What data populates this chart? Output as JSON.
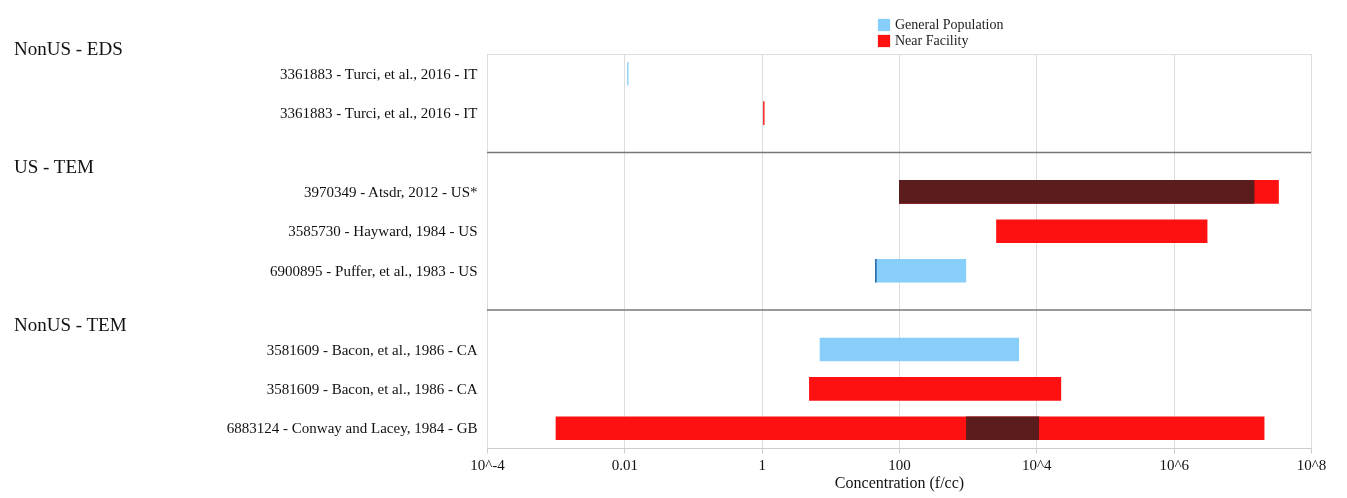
{
  "chart_data": {
    "type": "bar",
    "orientation": "horizontal",
    "log": "x",
    "grid": "x",
    "legend": "top",
    "xlabel": "Concentration (f/cc)",
    "categories": [
      "3361883 - Turci, et al., 2016 - IT",
      "3361883 - Turci, et al., 2016 - IT",
      null,
      "3970349 - Atsdr, 2012 - US*",
      "3585730 - Hayward, 1984 - US",
      "6900895 - Puffer, et al., 1983 - US",
      null,
      "3581609 - Bacon, et al., 1986 - CA",
      "3581609 - Bacon, et al., 1986 - CA",
      "6883124 - Conway and Lacey, 1984 - GB"
    ],
    "annotations": [
      "NonUS - EDS",
      "US - TEM",
      "NonUS - TEM"
    ],
    "xlim": [
      0.0001,
      100000000
    ],
    "xticks": [
      {
        "value": 0.0001,
        "label": "10^-4"
      },
      0.01,
      1,
      100,
      {
        "value": 10000,
        "label": "10^4"
      },
      {
        "value": 1000000,
        "label": "10^6"
      },
      {
        "value": 100000000,
        "label": "10^8"
      }
    ],
    "series": [
      {
        "name": "General Population",
        "color": "#87cefa",
        "base": [
          0.011,
          null,
          null,
          null,
          null,
          46,
          null,
          7,
          null,
          null
        ],
        "values": [
          0.0005,
          null,
          null,
          null,
          null,
          904,
          null,
          5593,
          null,
          null
        ]
      },
      {
        "name": "Near Facility",
        "color": "#ff1111",
        "base": [
          null,
          1.05,
          null,
          100,
          2600,
          null,
          null,
          null,
          4.9,
          0.001
        ],
        "values": [
          null,
          0.05,
          null,
          34000000,
          3100000,
          null,
          null,
          null,
          23000,
          21000000
        ]
      },
      {
        "color": "#004c99",
        "base": [
          null,
          null,
          null,
          null,
          null,
          45,
          null,
          null,
          null,
          null
        ],
        "values": [
          null,
          null,
          null,
          null,
          null,
          2,
          null,
          null,
          null,
          null
        ]
      },
      {
        "color": "#5a1c1c",
        "base": [
          null,
          null,
          null,
          100,
          null,
          null,
          null,
          null,
          null,
          950
        ],
        "values": [
          null,
          null,
          null,
          15000000,
          null,
          null,
          null,
          null,
          null,
          10000
        ]
      }
    ]
  }
}
